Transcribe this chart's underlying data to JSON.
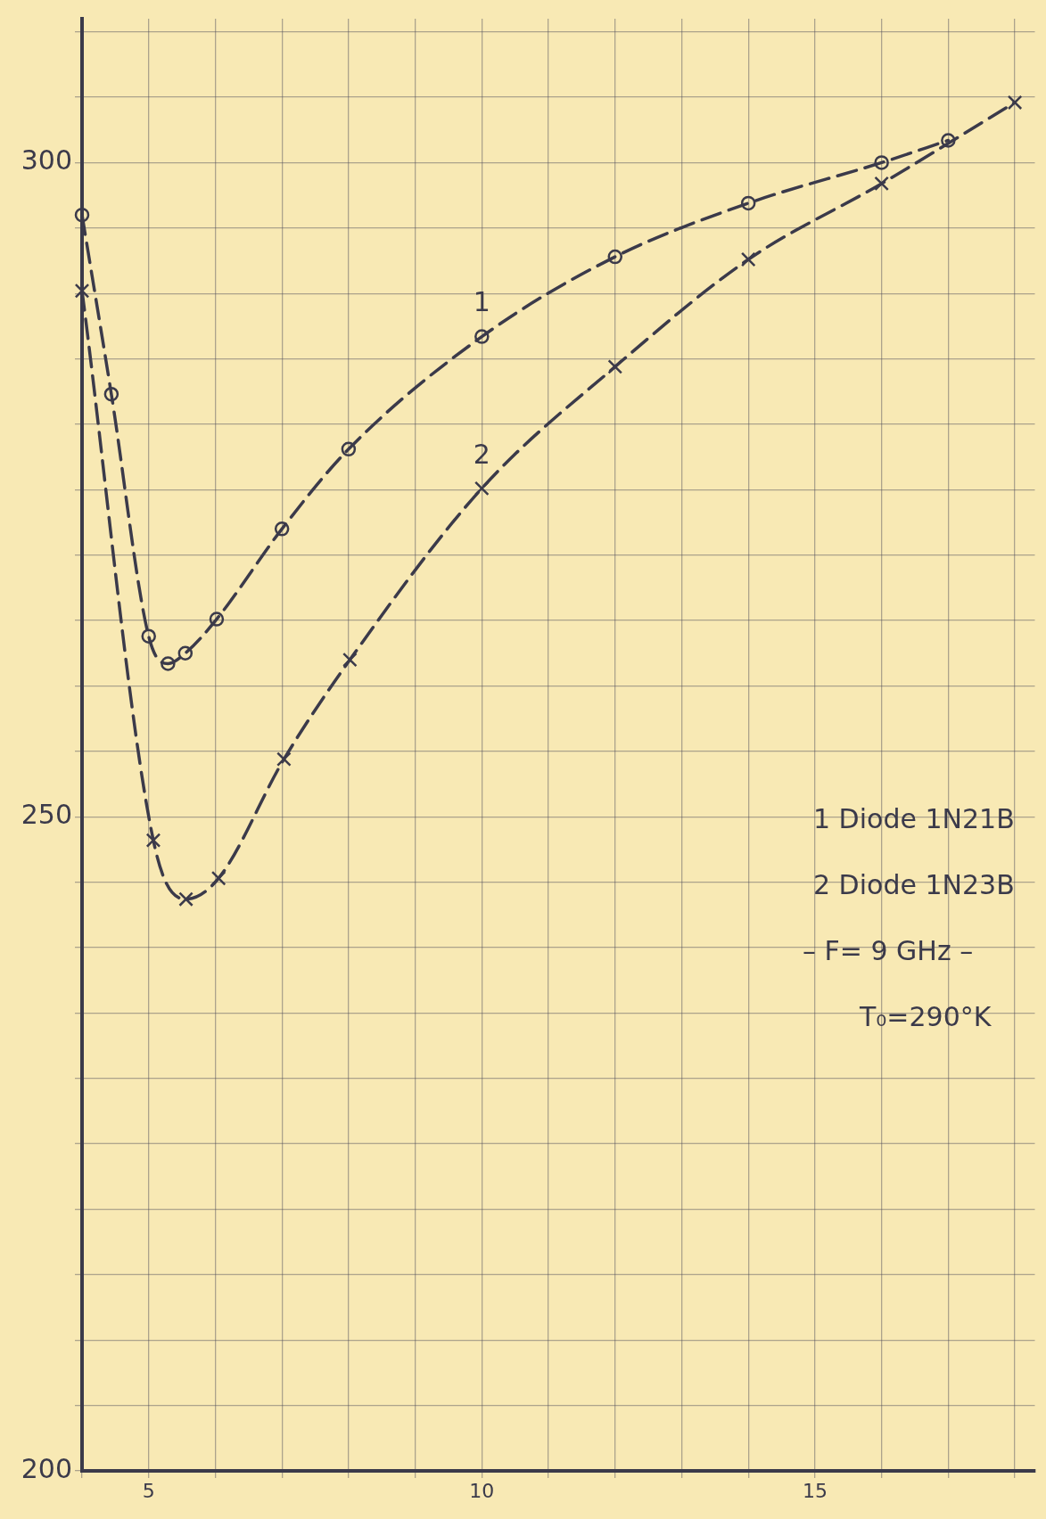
{
  "chart_data": {
    "type": "line",
    "series": [
      {
        "name": "1",
        "color": "#3b3a4a",
        "marker": "circle",
        "line_style": "dashed",
        "x": [
          4.0,
          4.44,
          5.0,
          5.29,
          5.55,
          6.02,
          7.0,
          8.0,
          10.0,
          12.0,
          14.0,
          16.0,
          17.0
        ],
        "values": [
          296,
          282.3,
          263.8,
          261.7,
          262.5,
          265.1,
          272.0,
          278.1,
          286.7,
          292.8,
          296.9,
          300,
          301.7
        ]
      },
      {
        "name": "2",
        "color": "#3b3a4a",
        "marker": "cross",
        "line_style": "dashed",
        "x": [
          4.0,
          5.07,
          5.56,
          6.05,
          7.03,
          8.02,
          10.0,
          12.0,
          14.0,
          16.0,
          18.0
        ],
        "values": [
          290.2,
          248.2,
          243.7,
          245.3,
          254.4,
          262.0,
          275.1,
          284.4,
          292.6,
          298.4,
          304.6
        ]
      }
    ],
    "xlim": [
      4,
      18.3
    ],
    "xticks": [
      {
        "value": 4,
        "label": null
      },
      5,
      {
        "value": 6,
        "label": null
      },
      {
        "value": 7,
        "label": null
      },
      {
        "value": 8,
        "label": null
      },
      {
        "value": 9,
        "label": null
      },
      10,
      {
        "value": 11,
        "label": null
      },
      {
        "value": 12,
        "label": null
      },
      {
        "value": 13,
        "label": null
      },
      {
        "value": 14,
        "label": null
      },
      15,
      {
        "value": 16,
        "label": null
      },
      {
        "value": 17,
        "label": null
      },
      {
        "value": 18,
        "label": null
      }
    ],
    "ylim": [
      200,
      311
    ],
    "yticks": [
      200,
      {
        "value": 205,
        "label": null
      },
      {
        "value": 210,
        "label": null
      },
      {
        "value": 215,
        "label": null
      },
      {
        "value": 220,
        "label": null
      },
      {
        "value": 225,
        "label": null
      },
      {
        "value": 230,
        "label": null
      },
      {
        "value": 235,
        "label": null
      },
      {
        "value": 240,
        "label": null
      },
      {
        "value": 245,
        "label": null
      },
      250,
      {
        "value": 255,
        "label": null
      },
      {
        "value": 260,
        "label": null
      },
      {
        "value": 265,
        "label": null
      },
      {
        "value": 270,
        "label": null
      },
      {
        "value": 275,
        "label": null
      },
      {
        "value": 280,
        "label": null
      },
      {
        "value": 285,
        "label": null
      },
      {
        "value": 290,
        "label": null
      },
      {
        "value": 295,
        "label": null
      },
      300,
      {
        "value": 305,
        "label": null
      },
      {
        "value": 310,
        "label": null
      }
    ],
    "grid": true,
    "annotations": [
      "1 Diode 1N21B",
      "2 Diode 1N23B",
      "– F= 9 GHz –",
      "T₀=290°K"
    ]
  }
}
